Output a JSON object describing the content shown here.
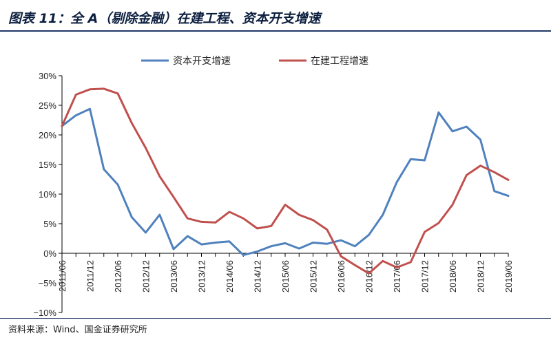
{
  "header": {
    "title": "图表 11：全 A（剔除金融）在建工程、资本开支增速"
  },
  "footer": {
    "source": "资料来源：Wind、国金证券研究所"
  },
  "chart_data": {
    "type": "line",
    "title": "图表 11：全 A（剔除金融）在建工程、资本开支增速",
    "xlabel": "",
    "ylabel": "",
    "ylim": [
      -10,
      30
    ],
    "yticks": [
      "30%",
      "25%",
      "20%",
      "15%",
      "10%",
      "5%",
      "0%",
      "−5%",
      "−10%"
    ],
    "ytick_values": [
      30,
      25,
      20,
      15,
      10,
      5,
      0,
      -5,
      -10
    ],
    "x": [
      "2011/06",
      "2011/09",
      "2011/12",
      "2012/03",
      "2012/06",
      "2012/09",
      "2012/12",
      "2013/03",
      "2013/06",
      "2013/09",
      "2013/12",
      "2014/03",
      "2014/06",
      "2014/09",
      "2014/12",
      "2015/03",
      "2015/06",
      "2015/09",
      "2015/12",
      "2016/03",
      "2016/06",
      "2016/09",
      "2016/12",
      "2017/03",
      "2017/06",
      "2017/09",
      "2017/12",
      "2018/03",
      "2018/06",
      "2018/09",
      "2018/12",
      "2019/03",
      "2019/06"
    ],
    "xtick_labels": [
      "2011/06",
      "2011/12",
      "2012/06",
      "2012/12",
      "2013/06",
      "2013/12",
      "2014/06",
      "2014/12",
      "2015/06",
      "2015/12",
      "2016/06",
      "2016/12",
      "2017/06",
      "2017/12",
      "2018/06",
      "2018/12",
      "2019/06"
    ],
    "legend_position": "top",
    "grid": false,
    "series": [
      {
        "name": "资本开支增速",
        "color": "#4f81bd",
        "values": [
          21.5,
          23.3,
          24.4,
          14.2,
          11.6,
          6.1,
          3.5,
          6.5,
          0.7,
          2.9,
          1.5,
          1.8,
          2.0,
          -0.3,
          0.3,
          1.2,
          1.7,
          0.8,
          1.8,
          1.6,
          2.2,
          1.2,
          3.1,
          6.5,
          12.0,
          15.9,
          15.7,
          23.8,
          20.6,
          21.4,
          19.2,
          10.5,
          9.7
        ]
      },
      {
        "name": "在建工程增速",
        "color": "#c0504d",
        "values": [
          21.5,
          26.8,
          27.7,
          27.8,
          27.0,
          22.0,
          17.8,
          13.0,
          9.5,
          5.9,
          5.3,
          5.2,
          7.0,
          5.9,
          4.2,
          4.6,
          8.2,
          6.5,
          5.6,
          4.0,
          -0.5,
          -2.0,
          -3.4,
          -1.3,
          -2.4,
          -1.5,
          3.6,
          5.1,
          8.2,
          13.2,
          14.8,
          13.7,
          12.4
        ]
      }
    ]
  }
}
